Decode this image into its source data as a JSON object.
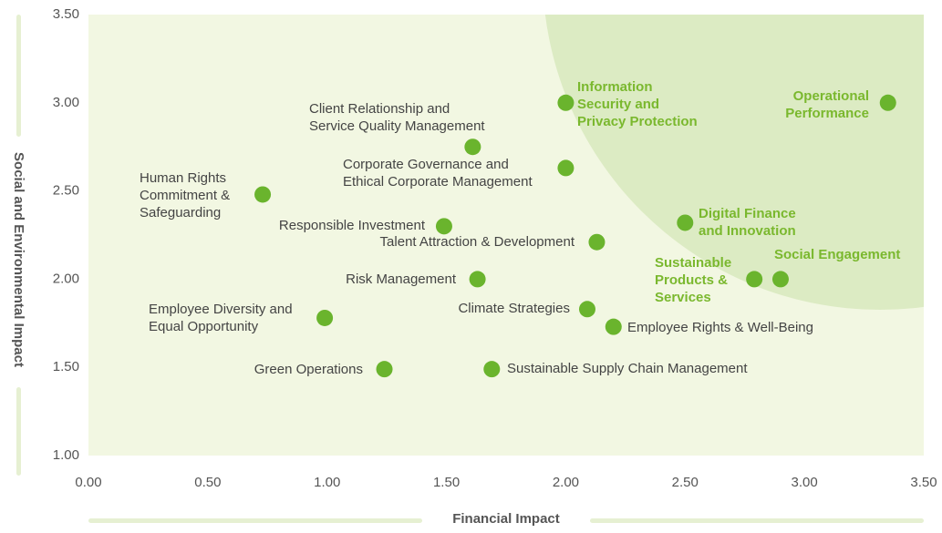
{
  "chart_data": {
    "type": "scatter",
    "x_label": "Financial Impact",
    "y_label": "Social and Environmental Impact",
    "xlim": [
      0,
      3.5
    ],
    "ylim": [
      1,
      3.5
    ],
    "xticks": [
      {
        "value": 0,
        "label": "0.00"
      },
      {
        "value": 0.5,
        "label": "0.50"
      },
      {
        "value": 1,
        "label": "1.00"
      },
      {
        "value": 1.5,
        "label": "1.50"
      },
      {
        "value": 2,
        "label": "2.00"
      },
      {
        "value": 2.5,
        "label": "2.50"
      },
      {
        "value": 3,
        "label": "3.00"
      },
      {
        "value": 3.5,
        "label": "3.50"
      }
    ],
    "yticks": [
      {
        "value": 1,
        "label": "1.00"
      },
      {
        "value": 1.5,
        "label": "1.50"
      },
      {
        "value": 2,
        "label": "2.00"
      },
      {
        "value": 2.5,
        "label": "2.50"
      },
      {
        "value": 3,
        "label": "3.00"
      },
      {
        "value": 3.5,
        "label": "3.50"
      }
    ],
    "color": "#6ab42d",
    "points": [
      {
        "label": [
          "Information",
          "Security and",
          "Privacy Protection"
        ],
        "x": 2.0,
        "y": 3.0,
        "label_color": "#7ab82e"
      },
      {
        "label": [
          "Operational",
          "Performance"
        ],
        "x": 3.35,
        "y": 3.0,
        "label_color": "#7ab82e"
      },
      {
        "label": [
          "Client Relationship and",
          "Service Quality Management"
        ],
        "x": 1.61,
        "y": 2.75,
        "label_color": "#444444"
      },
      {
        "label": [
          "Corporate Governance and",
          "Ethical Corporate Management"
        ],
        "x": 2.0,
        "y": 2.63,
        "label_color": "#444444"
      },
      {
        "label": [
          "Human Rights",
          "Commitment &",
          "Safeguarding"
        ],
        "x": 0.73,
        "y": 2.48,
        "label_color": "#444444"
      },
      {
        "label": [
          "Responsible Investment"
        ],
        "x": 1.49,
        "y": 2.3,
        "label_color": "#444444"
      },
      {
        "label": [
          "Digital Finance",
          "and Innovation"
        ],
        "x": 2.5,
        "y": 2.32,
        "label_color": "#7ab82e"
      },
      {
        "label": [
          "Talent Attraction & Development"
        ],
        "x": 2.13,
        "y": 2.21,
        "label_color": "#444444"
      },
      {
        "label": [
          "Risk Management"
        ],
        "x": 1.63,
        "y": 2.0,
        "label_color": "#444444"
      },
      {
        "label": [
          "Sustainable",
          "Products &",
          "Services"
        ],
        "x": 2.79,
        "y": 2.0,
        "label_color": "#7ab82e"
      },
      {
        "label": [
          "Social Engagement"
        ],
        "x": 2.9,
        "y": 2.0,
        "label_color": "#7ab82e"
      },
      {
        "label": [
          "Climate Strategies"
        ],
        "x": 2.09,
        "y": 1.83,
        "label_color": "#444444"
      },
      {
        "label": [
          "Employee Diversity and",
          "Equal Opportunity"
        ],
        "x": 0.99,
        "y": 1.78,
        "label_color": "#444444"
      },
      {
        "label": [
          "Employee Rights & Well-Being"
        ],
        "x": 2.2,
        "y": 1.73,
        "label_color": "#444444"
      },
      {
        "label": [
          "Green Operations"
        ],
        "x": 1.24,
        "y": 1.49,
        "label_color": "#444444"
      },
      {
        "label": [
          "Sustainable Supply Chain Management"
        ],
        "x": 1.69,
        "y": 1.49,
        "label_color": "#444444"
      }
    ]
  }
}
